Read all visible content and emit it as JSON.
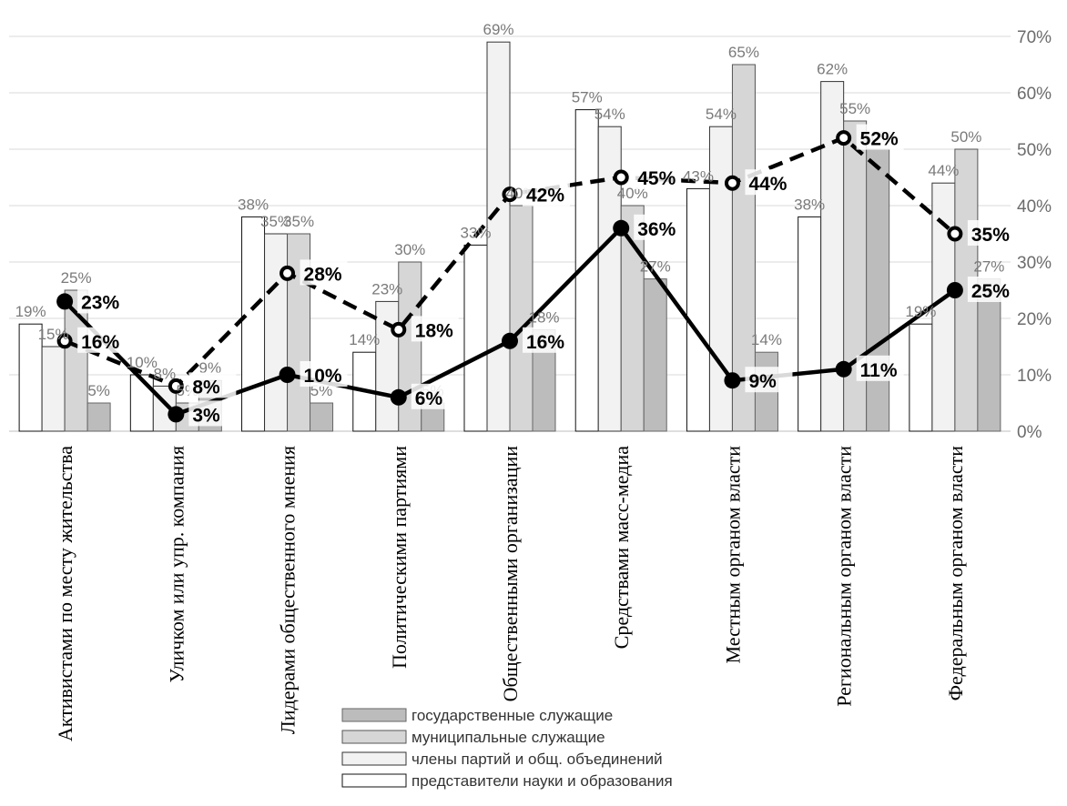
{
  "chart_data": {
    "type": "bar",
    "categories": [
      "Активистами по месту жительства",
      "Уличком или упр. компания",
      "Лидерами общественного мнения",
      "Политическими партиями",
      "Общественными организации",
      "Средствами масс-медиа",
      "Местным органом власти",
      "Региональным органом власти",
      "Федеральным органом власти"
    ],
    "ylim": [
      0,
      70
    ],
    "yticks": [
      "0%",
      "10%",
      "20%",
      "30%",
      "40%",
      "50%",
      "60%",
      "70%"
    ],
    "grid": true,
    "legend_position": "bottom-center",
    "series": [
      {
        "name": "представители науки и образования",
        "values": [
          19,
          10,
          38,
          14,
          33,
          57,
          43,
          38,
          19
        ],
        "color": "#ffffff"
      },
      {
        "name": "члены партий и общ. объединений",
        "values": [
          15,
          8,
          35,
          23,
          69,
          54,
          54,
          62,
          44
        ],
        "color": "#f2f2f2"
      },
      {
        "name": "муниципальные служащие",
        "values": [
          25,
          5,
          35,
          30,
          40,
          40,
          65,
          55,
          50
        ],
        "color": "#d6d6d6"
      },
      {
        "name": "государственные служащие",
        "values": [
          5,
          9,
          5,
          5,
          18,
          27,
          14,
          50,
          27
        ],
        "color": "#bcbcbc"
      }
    ],
    "bar_labels": [
      [
        "19%",
        "15%",
        "25%",
        "5%"
      ],
      [
        "10%",
        "8%",
        "5%",
        "9%"
      ],
      [
        "38%",
        "35%",
        "35%",
        "5%"
      ],
      [
        "14%",
        "23%",
        "30%",
        "5%"
      ],
      [
        "33%",
        "69%",
        "40%",
        "18%"
      ],
      [
        "57%",
        "54%",
        "40%",
        "27%"
      ],
      [
        "43%",
        "54%",
        "65%",
        "14%"
      ],
      [
        "38%",
        "62%",
        "55%",
        "50%"
      ],
      [
        "19%",
        "44%",
        "50%",
        "27%"
      ]
    ],
    "lines": [
      {
        "style": "solid",
        "values": [
          23,
          3,
          10,
          6,
          16,
          36,
          9,
          11,
          25
        ],
        "labels": [
          "23%",
          "3%",
          "10%",
          "6%",
          "16%",
          "36%",
          "9%",
          "11%",
          "25%"
        ]
      },
      {
        "style": "dashed",
        "values": [
          16,
          8,
          28,
          18,
          42,
          45,
          44,
          52,
          35
        ],
        "labels": [
          "16%",
          "8%",
          "28%",
          "18%",
          "42%",
          "45%",
          "44%",
          "52%",
          "35%"
        ]
      }
    ]
  }
}
